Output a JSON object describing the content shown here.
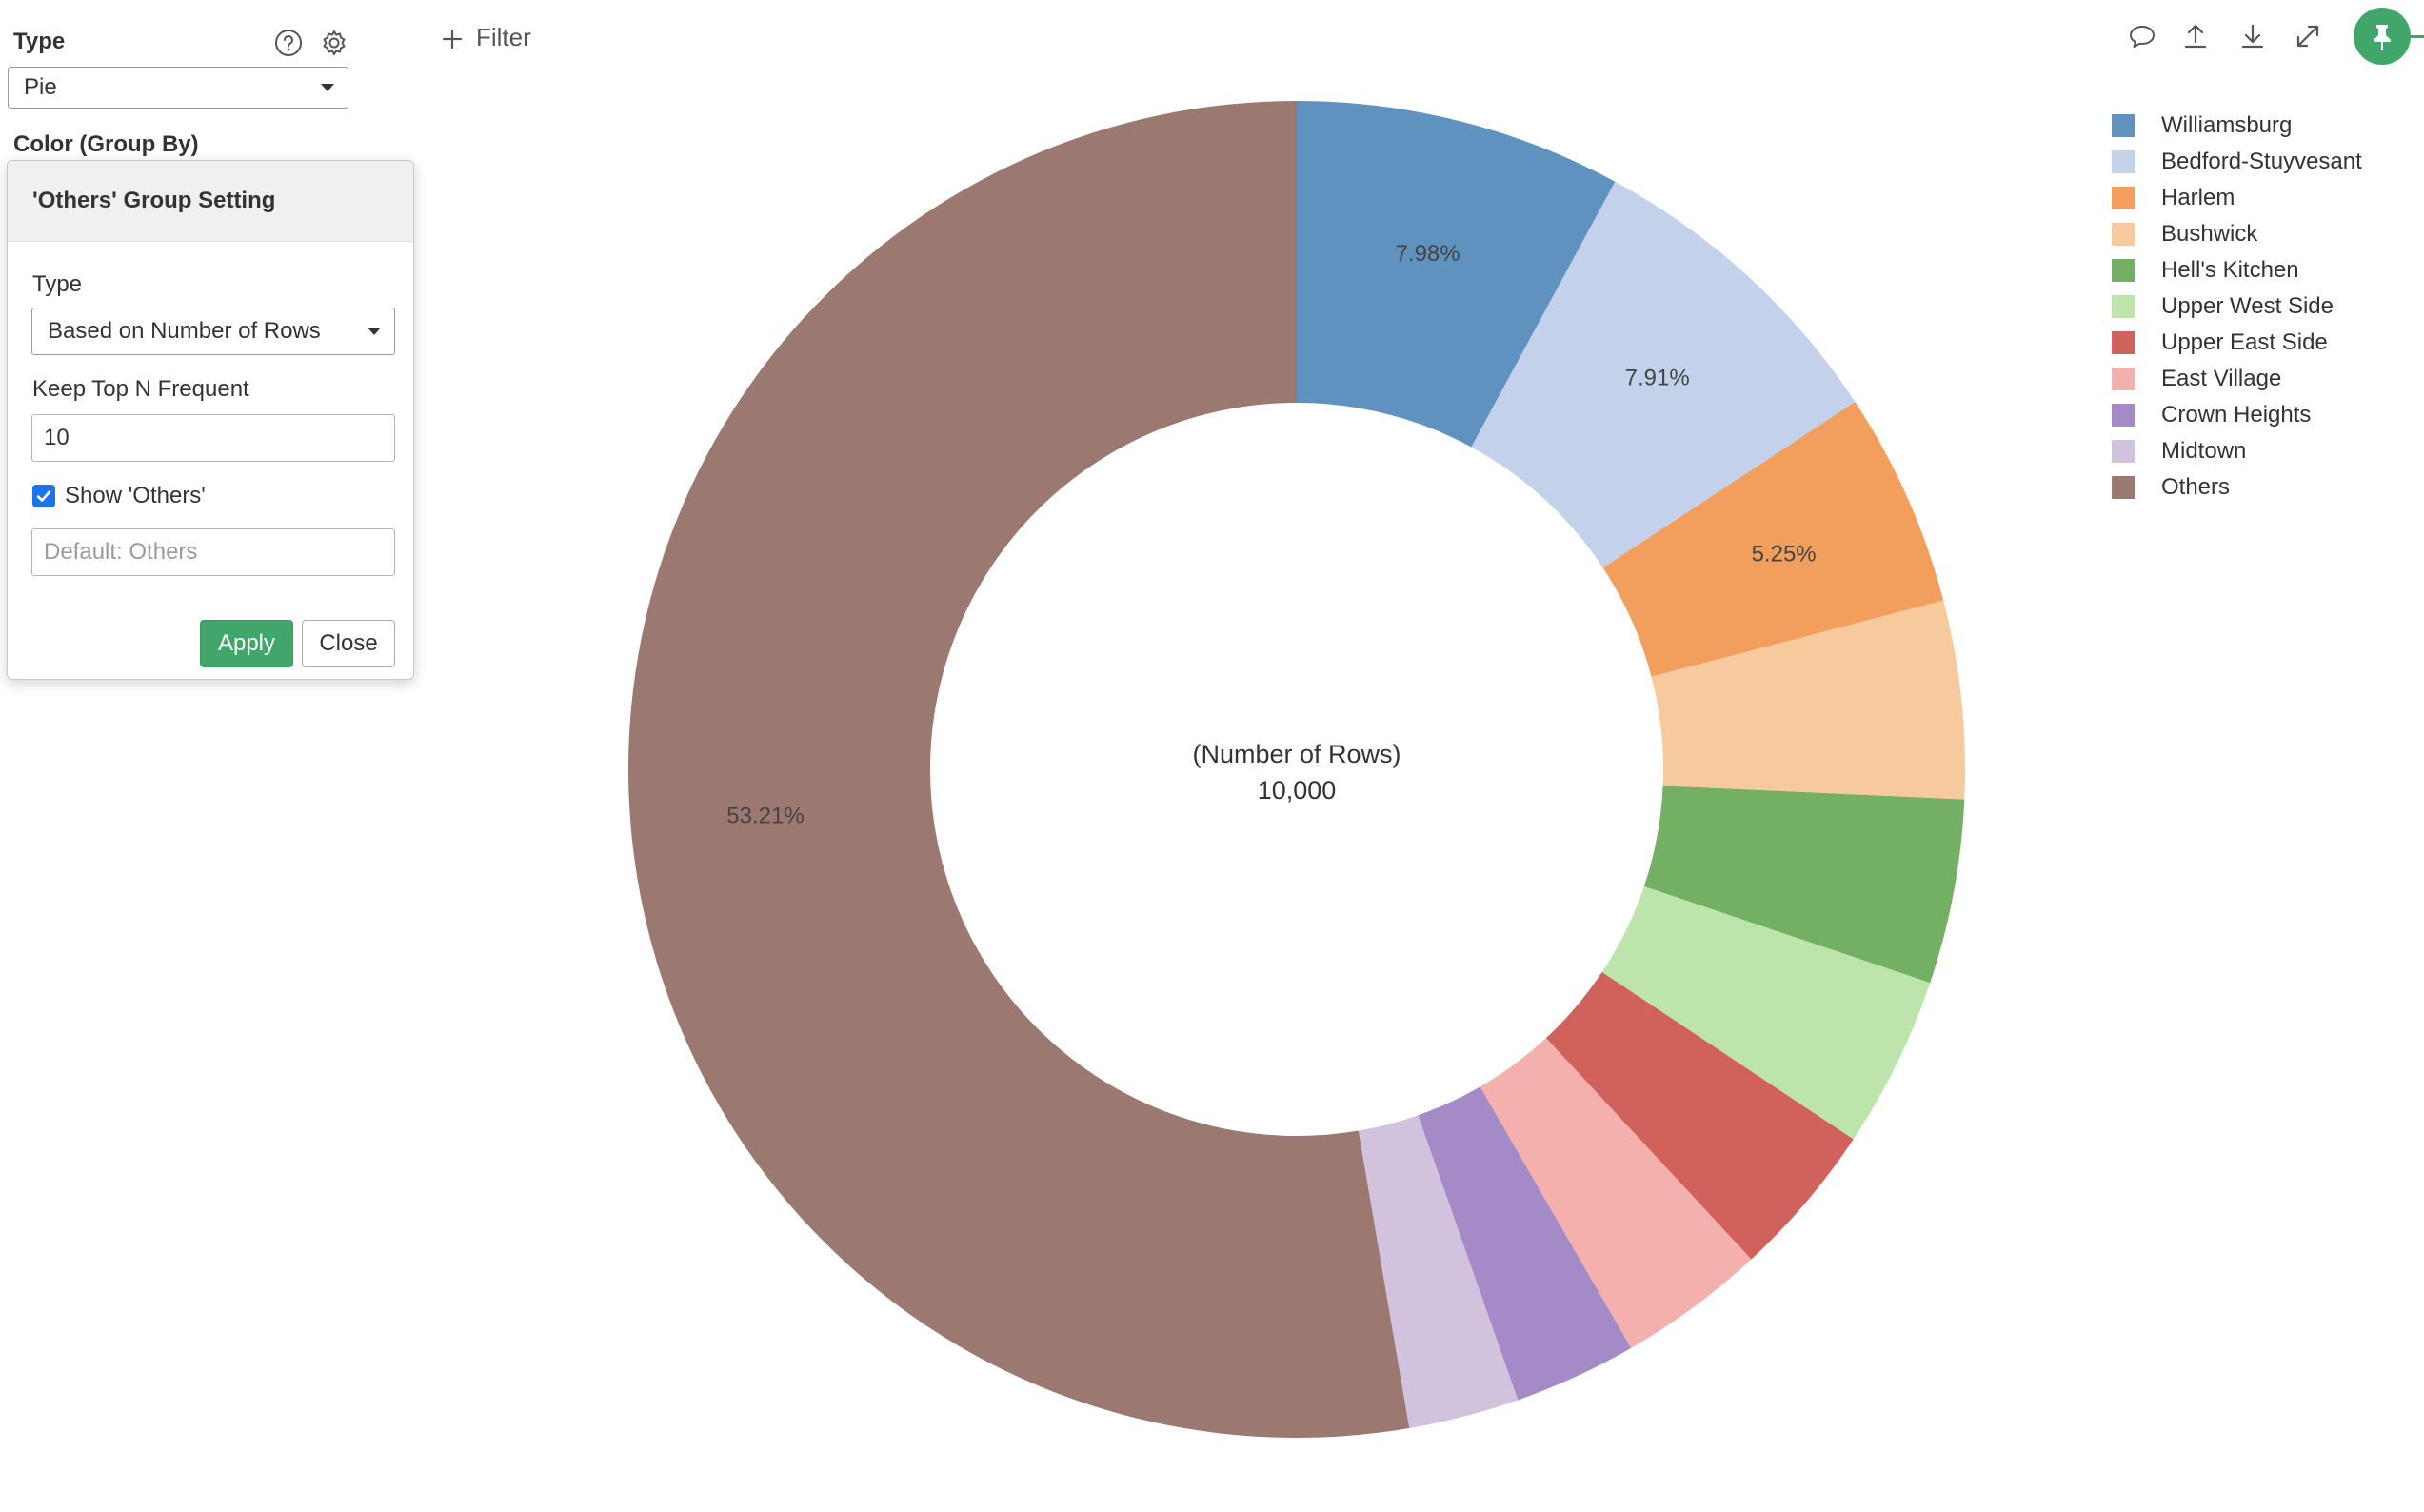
{
  "panel": {
    "type_label": "Type",
    "type_value": "Pie",
    "color_label": "Color (Group By)"
  },
  "icons": {
    "help": "help-circle-icon",
    "settings": "gear-icon",
    "filter": "plus-icon",
    "comment": "comment-icon",
    "upload": "upload-icon",
    "download": "download-icon",
    "expand": "expand-icon",
    "pin": "pin-icon"
  },
  "popup": {
    "title": "'Others' Group Setting",
    "type_label": "Type",
    "type_value": "Based on Number of Rows",
    "keep_top_label": "Keep Top N Frequent",
    "keep_top_value": "10",
    "show_others_label": "Show 'Others'",
    "show_others_checked": true,
    "others_name_placeholder": "Default: Others",
    "apply_label": "Apply",
    "close_label": "Close"
  },
  "toolbar": {
    "filter_label": "Filter"
  },
  "colors": {
    "accent": "#41a66a",
    "checkbox": "#1a73e8"
  },
  "chart_data": {
    "type": "pie",
    "donut": true,
    "center_label": "(Number of Rows)",
    "center_value": "10,000",
    "legend_position": "top-right",
    "categories": [
      "Williamsburg",
      "Bedford-Stuyvesant",
      "Harlem",
      "Bushwick",
      "Hell's Kitchen",
      "Upper West Side",
      "Upper East Side",
      "East Village",
      "Crown Heights",
      "Midtown",
      "Others"
    ],
    "values": [
      7.98,
      7.91,
      5.25,
      4.83,
      4.5,
      4.2,
      3.8,
      3.6,
      3.0,
      2.7,
      53.21
    ],
    "slice_labels": [
      "7.98%",
      "7.91%",
      "5.25%",
      "",
      "",
      "",
      "",
      "",
      "",
      "",
      "53.21%"
    ],
    "colors": [
      "#6092c0",
      "#c3d2ea",
      "#f29e5c",
      "#f6ca9d",
      "#74b063",
      "#bde4aa",
      "#d0625b",
      "#f3b0ad",
      "#a48ac6",
      "#d1c3de",
      "#9c7970"
    ]
  }
}
